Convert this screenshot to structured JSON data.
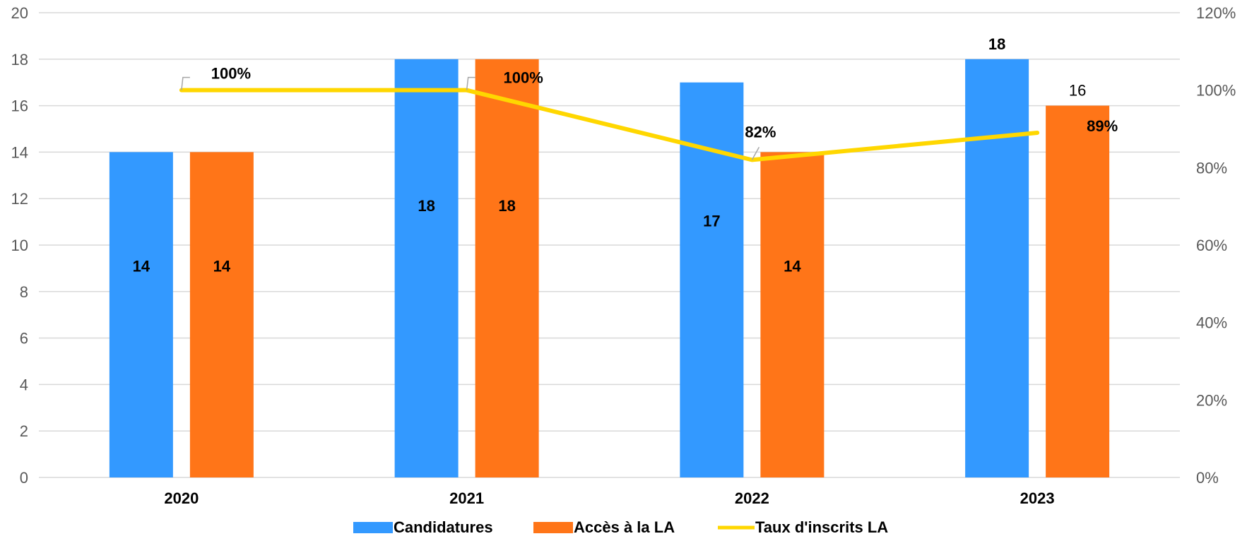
{
  "chart_data": {
    "type": "bar",
    "categories": [
      "2020",
      "2021",
      "2022",
      "2023"
    ],
    "series": [
      {
        "name": "Candidatures",
        "type": "bar",
        "axis": "left",
        "color": "#3399FF",
        "values": [
          14,
          18,
          17,
          18
        ],
        "labels": [
          "14",
          "18",
          "17",
          "18"
        ]
      },
      {
        "name": "Accès à la LA",
        "type": "bar",
        "axis": "left",
        "color": "#FF7518",
        "values": [
          14,
          18,
          14,
          16
        ],
        "labels": [
          "14",
          "18",
          "14",
          "16"
        ]
      },
      {
        "name": "Taux d'inscrits LA",
        "type": "line",
        "axis": "right",
        "color": "#FFD700",
        "values": [
          1.0,
          1.0,
          0.82,
          0.89
        ],
        "labels": [
          "100%",
          "100%",
          "82%",
          "89%"
        ]
      }
    ],
    "y_left": {
      "min": 0,
      "max": 20,
      "step": 2,
      "ticks": [
        "0",
        "2",
        "4",
        "6",
        "8",
        "10",
        "12",
        "14",
        "16",
        "18",
        "20"
      ]
    },
    "y_right": {
      "min": 0,
      "max": 1.2,
      "step": 0.2,
      "ticks": [
        "0%",
        "20%",
        "40%",
        "60%",
        "80%",
        "100%",
        "120%"
      ]
    },
    "grid": true,
    "legend_position": "bottom",
    "title": "",
    "xlabel": "",
    "ylabel": ""
  }
}
